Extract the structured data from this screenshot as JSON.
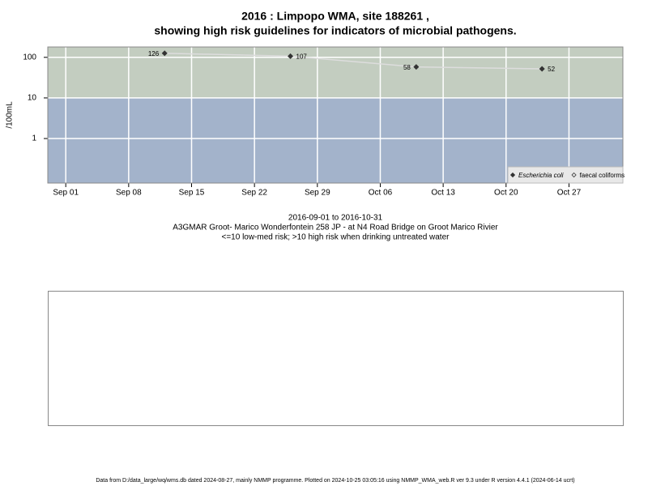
{
  "chart_data": {
    "type": "line",
    "title": [
      "2016 : Limpopo WMA, site 188261 ,",
      "showing high risk guidelines for indicators of microbial pathogens."
    ],
    "ylabel": "/100mL",
    "log_y": true,
    "ylim": [
      0.08,
      180
    ],
    "yticks": [
      1,
      10,
      100
    ],
    "threshold": 10,
    "below_color": "#a3b3cb",
    "above_color": "#c3cdc0",
    "xlim": [
      "2016-08-30",
      "2016-11-02"
    ],
    "xticks": [
      {
        "value": "2016-09-01",
        "label": "Sep 01"
      },
      {
        "value": "2016-09-08",
        "label": "Sep 08"
      },
      {
        "value": "2016-09-15",
        "label": "Sep 15"
      },
      {
        "value": "2016-09-22",
        "label": "Sep 22"
      },
      {
        "value": "2016-09-29",
        "label": "Sep 29"
      },
      {
        "value": "2016-10-06",
        "label": "Oct 06"
      },
      {
        "value": "2016-10-13",
        "label": "Oct 13"
      },
      {
        "value": "2016-10-20",
        "label": "Oct 20"
      },
      {
        "value": "2016-10-27",
        "label": "Oct 27"
      }
    ],
    "grid": true,
    "legend": "bottom-right",
    "series": [
      {
        "name": "Escherichia coli",
        "color": "#333333",
        "line_color": "#dddddd",
        "x": [
          "2016-09-12",
          "2016-09-26",
          "2016-10-10",
          "2016-10-24"
        ],
        "values": [
          126,
          107,
          58,
          52
        ]
      },
      {
        "name": "faecal coliforms",
        "color": "#333333",
        "x": [],
        "values": []
      }
    ],
    "period": "2016-09-01 to 2016-10-31",
    "site": "A3GMAR Groot- Marico Wonderfontein 258 JP - at N4 Road Bridge on Groot Marico Rivier",
    "risk_note": "<=10 low-med risk; >10 high risk when drinking untreated water",
    "footer": "Data from D:/data_large/wq/wms.db dated 2024-08-27, mainly NMMP programme. Plotted on 2024-10-25 03:05:16 using NMMP_WMA_web.R ver 9.3 under R version 4.4.1 (2024-06-14 ucrt)"
  }
}
